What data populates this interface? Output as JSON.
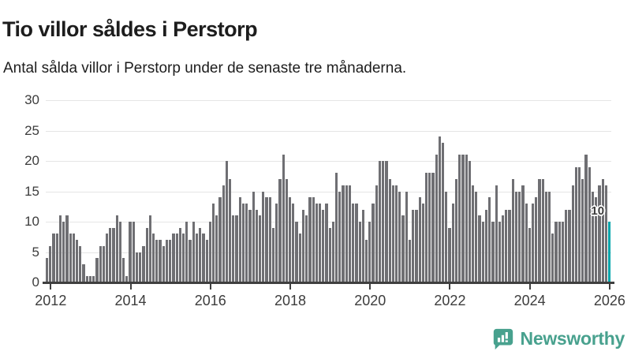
{
  "header": {
    "title": "Tio villor såldes i Perstorp",
    "subtitle": "Antal sålda villor i Perstorp under de senaste tre månaderna."
  },
  "chart_data": {
    "type": "bar",
    "title": "Tio villor såldes i Perstorp",
    "subtitle": "Antal sålda villor i Perstorp under de senaste tre månaderna.",
    "ylabel": "",
    "xlabel": "",
    "ylim": [
      0,
      30
    ],
    "yticks": [
      0,
      5,
      10,
      15,
      20,
      25,
      30
    ],
    "grid": "horizontal",
    "start_month": "2011-12",
    "x_tick_years": [
      2012,
      2014,
      2016,
      2018,
      2020,
      2022,
      2024,
      2026
    ],
    "bar_color": "#6f6f73",
    "highlight_color": "#00a5ab",
    "values": [
      4,
      6,
      8,
      8,
      11,
      10,
      11,
      8,
      8,
      7,
      6,
      3,
      1,
      1,
      1,
      4,
      6,
      6,
      8,
      9,
      9,
      11,
      10,
      4,
      1,
      10,
      10,
      5,
      5,
      6,
      9,
      11,
      8,
      7,
      7,
      6,
      7,
      7,
      8,
      8,
      9,
      8,
      10,
      7,
      10,
      8,
      9,
      8,
      7,
      10,
      13,
      11,
      14,
      16,
      20,
      17,
      11,
      11,
      14,
      13,
      13,
      12,
      15,
      12,
      11,
      15,
      14,
      14,
      9,
      13,
      17,
      21,
      17,
      14,
      13,
      10,
      8,
      12,
      11,
      14,
      14,
      13,
      13,
      12,
      13,
      9,
      10,
      18,
      15,
      16,
      16,
      16,
      13,
      13,
      10,
      12,
      7,
      10,
      13,
      16,
      20,
      20,
      20,
      17,
      16,
      16,
      15,
      11,
      15,
      7,
      12,
      12,
      14,
      13,
      18,
      18,
      18,
      21,
      24,
      23,
      15,
      9,
      13,
      17,
      21,
      21,
      21,
      20,
      16,
      15,
      11,
      10,
      12,
      14,
      10,
      16,
      10,
      11,
      12,
      12,
      17,
      15,
      15,
      16,
      13,
      9,
      13,
      14,
      17,
      17,
      15,
      15,
      8,
      10,
      10,
      10,
      12,
      12,
      16,
      19,
      19,
      17,
      21,
      19,
      15,
      14,
      16,
      17,
      16,
      10
    ],
    "highlight": {
      "index": 169,
      "value": 10,
      "label": "10"
    }
  },
  "footer": {
    "brand": "Newsworthy"
  }
}
